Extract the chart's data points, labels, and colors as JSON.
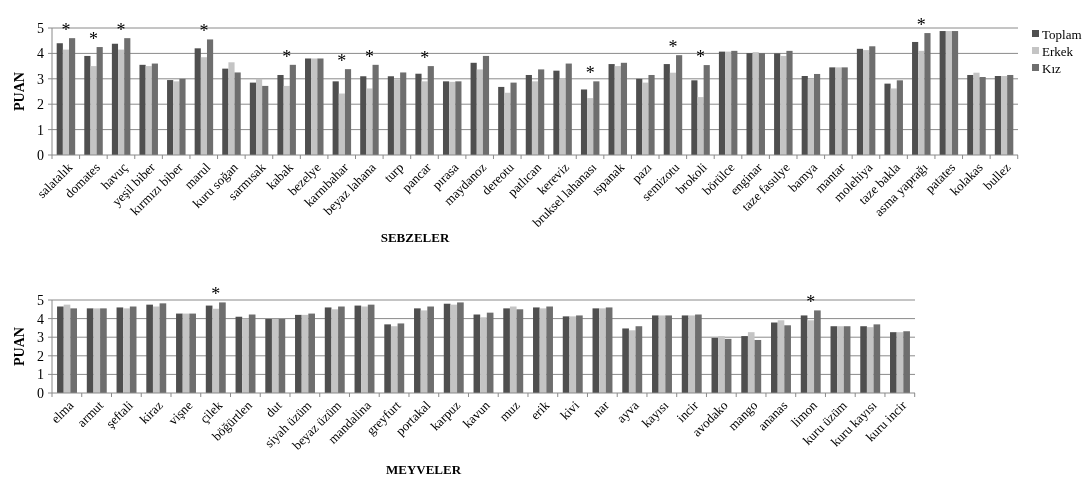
{
  "chart_data": [
    {
      "type": "bar",
      "xlabel": "SEBZELER",
      "ylabel": "PUAN",
      "categories": [
        "salatalık",
        "domates",
        "havuç",
        "yeşil biber",
        "kırmızı biber",
        "marul",
        "kuru soğan",
        "sarmısak",
        "kabak",
        "bezelye",
        "karnıbahar",
        "beyaz lahana",
        "turp",
        "pancar",
        "pırasa",
        "maydanoz",
        "dereotu",
        "patlıcan",
        "kereviz",
        "bruksel lahanası",
        "ıspanak",
        "pazı",
        "semizotu",
        "brokoli",
        "börülce",
        "enginar",
        "taze fasulye",
        "bamya",
        "mantar",
        "molehiya",
        "taze bakla",
        "asma yaprağı",
        "patates",
        "kolakas",
        "bullez"
      ],
      "series": [
        {
          "name": "Toplam",
          "color": "#4f4f4f",
          "values": [
            4.4,
            3.9,
            4.38,
            3.55,
            2.95,
            4.2,
            3.4,
            2.85,
            3.15,
            3.8,
            2.9,
            3.1,
            3.1,
            3.2,
            2.9,
            3.63,
            2.68,
            3.15,
            3.32,
            2.58,
            3.58,
            3.0,
            3.58,
            2.94,
            4.07,
            4.01,
            4.0,
            3.11,
            3.45,
            4.18,
            2.81,
            4.45,
            4.88,
            3.15,
            3.11
          ]
        },
        {
          "name": "Erkek",
          "color": "#c4c4c4",
          "values": [
            4.15,
            3.5,
            4.15,
            3.5,
            2.9,
            3.85,
            3.65,
            3.0,
            2.72,
            3.8,
            2.42,
            2.62,
            2.98,
            2.9,
            2.88,
            3.37,
            2.45,
            2.9,
            3.02,
            2.24,
            3.5,
            2.85,
            3.24,
            2.28,
            4.07,
            4.05,
            3.9,
            3.0,
            3.45,
            4.13,
            2.62,
            4.1,
            4.88,
            3.24,
            3.11
          ]
        },
        {
          "name": "Kız",
          "color": "#6e6e6e",
          "values": [
            4.6,
            4.25,
            4.6,
            3.6,
            3.0,
            4.55,
            3.25,
            2.72,
            3.55,
            3.8,
            3.38,
            3.55,
            3.25,
            3.5,
            2.9,
            3.9,
            2.85,
            3.37,
            3.6,
            2.9,
            3.63,
            3.15,
            3.93,
            3.54,
            4.1,
            4.01,
            4.1,
            3.19,
            3.45,
            4.28,
            2.94,
            4.8,
            4.88,
            3.07,
            3.15
          ]
        }
      ],
      "annotations": [
        {
          "text": "*",
          "x": "salatalık",
          "y": 4.6
        },
        {
          "text": "*",
          "x": "domates",
          "y": 4.25
        },
        {
          "text": "*",
          "x": "havuç",
          "y": 4.6
        },
        {
          "text": "*",
          "x": "marul",
          "y": 4.55
        },
        {
          "text": "*",
          "x": "kabak",
          "y": 3.55
        },
        {
          "text": "*",
          "x": "karnıbahar",
          "y": 3.38
        },
        {
          "text": "*",
          "x": "beyaz lahana",
          "y": 3.55
        },
        {
          "text": "*",
          "x": "pancar",
          "y": 3.5
        },
        {
          "text": "*",
          "x": "bruksel lahanası",
          "y": 2.9
        },
        {
          "text": "*",
          "x": "semizotu",
          "y": 3.93
        },
        {
          "text": "*",
          "x": "brokoli",
          "y": 3.54
        },
        {
          "text": "*",
          "x": "asma yaprağı",
          "y": 4.8
        }
      ],
      "ylim": [
        0,
        5
      ],
      "yticks": [
        0,
        1,
        2,
        3,
        4,
        5
      ],
      "grid": "y",
      "legend": "right"
    },
    {
      "type": "bar",
      "xlabel": "MEYVELER",
      "ylabel": "PUAN",
      "categories": [
        "elma",
        "armut",
        "şeftali",
        "kiraz",
        "vişne",
        "çilek",
        "böğürtlen",
        "dut",
        "siyah üzüm",
        "beyaz üzüm",
        "mandalina",
        "greyfurt",
        "portakal",
        "karpuz",
        "kavun",
        "muz",
        "erik",
        "kivi",
        "nar",
        "ayva",
        "kayısı",
        "incir",
        "avodako",
        "mango",
        "ananas",
        "limon",
        "kuru üzüm",
        "kuru kayısı",
        "kuru incir"
      ],
      "series": [
        {
          "color": "#4f4f4f",
          "values": [
            4.65,
            4.55,
            4.6,
            4.75,
            4.27,
            4.7,
            4.1,
            3.98,
            4.2,
            4.6,
            4.7,
            3.69,
            4.55,
            4.8,
            4.22,
            4.55,
            4.6,
            4.12,
            4.55,
            3.47,
            4.17,
            4.17,
            2.96,
            3.06,
            3.79,
            4.17,
            3.59,
            3.59,
            3.27
          ]
        },
        {
          "color": "#c4c4c4",
          "values": [
            4.75,
            4.55,
            4.55,
            4.65,
            4.27,
            4.53,
            4.0,
            3.98,
            4.2,
            4.5,
            4.65,
            3.59,
            4.44,
            4.75,
            4.07,
            4.65,
            4.55,
            4.12,
            4.55,
            3.37,
            4.17,
            4.17,
            3.06,
            3.27,
            3.91,
            3.91,
            3.59,
            3.54,
            3.27
          ]
        },
        {
          "color": "#6e6e6e",
          "values": [
            4.55,
            4.55,
            4.65,
            4.82,
            4.27,
            4.87,
            4.22,
            3.98,
            4.27,
            4.65,
            4.75,
            3.74,
            4.65,
            4.87,
            4.32,
            4.5,
            4.65,
            4.17,
            4.6,
            3.59,
            4.17,
            4.22,
            2.91,
            2.85,
            3.64,
            4.44,
            3.59,
            3.69,
            3.32
          ]
        }
      ],
      "annotations": [
        {
          "text": "*",
          "x": "çilek",
          "y": 4.87
        },
        {
          "text": "*",
          "x": "limon",
          "y": 4.44
        }
      ],
      "ylim": [
        0,
        5
      ],
      "yticks": [
        0,
        1,
        2,
        3,
        4,
        5
      ],
      "grid": "y"
    }
  ]
}
